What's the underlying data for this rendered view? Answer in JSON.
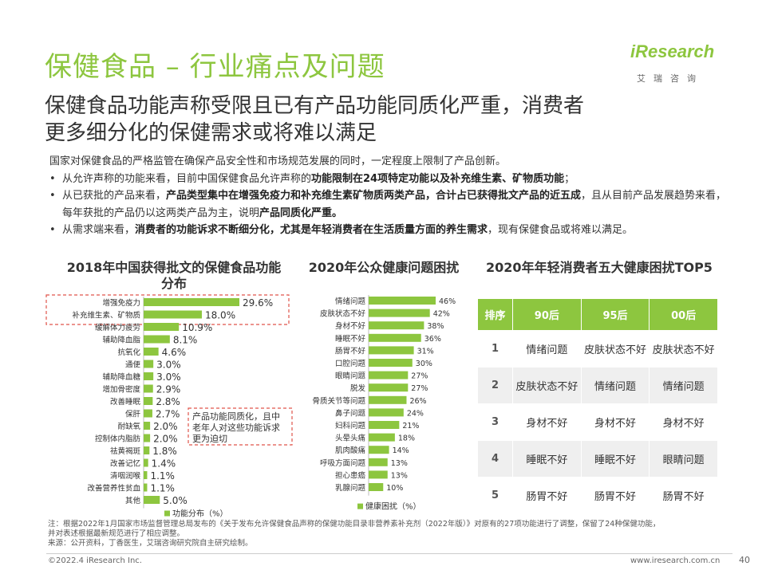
{
  "header": {
    "title": "保健食品 – 行业痛点及问题",
    "subtitle_line1": "保健食品功能声称受限且已有产品功能同质化严重，消费者",
    "subtitle_line2": "更多细分化的保健需求或将难以满足"
  },
  "logo": {
    "brand": "iResearch",
    "cn": "艾瑞咨询"
  },
  "intro": {
    "lead": "国家对保健食品的严格监管在确保产品安全性和市场规范发展的同时，一定程度上限制了产品创新。",
    "bullet1_pre": "从允许声称的功能来看，目前中国保健食品允许声称的",
    "bullet1_bold": "功能限制在24项特定功能以及补充维生素、矿物质功能",
    "bullet1_post": "；",
    "bullet2_pre": "从已获批的产品来看，",
    "bullet2_bold": "产品类型集中在增强免疫力和补充维生素矿物质两类产品，合计占已获得批文产品的近五成",
    "bullet2_mid": "，且从目前产品发展趋势来看，每年获批的产品仍以这两类产品为主，说明",
    "bullet2_bold2": "产品同质化严重。",
    "bullet3_pre": "从需求端来看，",
    "bullet3_bold": "消费者的功能诉求不断细分化，尤其是年轻消费者在生活质量方面的养生需求",
    "bullet3_post": "，现有保健食品或将难以满足。",
    "bullet_dot": "•"
  },
  "chart_data": [
    {
      "type": "bar",
      "orientation": "horizontal",
      "title": "2018年中国获得批文的保健食品功能分布",
      "categories": [
        "增强免疫力",
        "补充维生素、矿物质",
        "缓解体力疲劳",
        "辅助降血脂",
        "抗氧化",
        "通便",
        "辅助降血糖",
        "增加骨密度",
        "改善睡眠",
        "保肝",
        "耐缺氧",
        "控制体内脂肪",
        "祛黄褐斑",
        "改善记忆",
        "清咽润喉",
        "改善营养性贫血",
        "其他"
      ],
      "values": [
        29.6,
        18.0,
        10.9,
        8.1,
        4.6,
        3.0,
        3.0,
        2.9,
        2.8,
        2.7,
        2.0,
        2.0,
        1.8,
        1.4,
        1.1,
        1.1,
        5.0
      ],
      "value_labels": [
        "29.6%",
        "18.0%",
        "10.9%",
        "8.1%",
        "4.6%",
        "3.0%",
        "3.0%",
        "2.9%",
        "2.8%",
        "2.7%",
        "2.0%",
        "2.0%",
        "1.8%",
        "1.4%",
        "1.1%",
        "1.1%",
        "5.0%"
      ],
      "legend": "功能分布（%）",
      "annotation": "产品功能同质化，且中老年人对这些功能诉求更为迫切",
      "color": "#8dc63f",
      "highlight_color": "#e0554b"
    },
    {
      "type": "bar",
      "orientation": "horizontal",
      "title": "2020年公众健康问题困扰",
      "categories": [
        "情绪问题",
        "皮肤状态不好",
        "身材不好",
        "睡眠不好",
        "肠胃不好",
        "口腔问题",
        "眼睛问题",
        "脱发",
        "骨质关节等问题",
        "鼻子问题",
        "妇科问题",
        "头晕头痛",
        "肌肉酸痛",
        "呼吸方面问题",
        "担心患癌",
        "乳腺问题"
      ],
      "values": [
        46,
        42,
        38,
        36,
        31,
        30,
        27,
        27,
        26,
        24,
        21,
        18,
        14,
        13,
        13,
        10
      ],
      "value_labels": [
        "46%",
        "42%",
        "38%",
        "36%",
        "31%",
        "30%",
        "27%",
        "27%",
        "26%",
        "24%",
        "21%",
        "18%",
        "14%",
        "13%",
        "13%",
        "10%"
      ],
      "legend": "健康困扰（%）",
      "color": "#8dc63f"
    },
    {
      "type": "table",
      "title": "2020年年轻消费者五大健康困扰TOP5",
      "columns": [
        "排序",
        "90后",
        "95后",
        "00后"
      ],
      "rows": [
        [
          "1",
          "情绪问题",
          "皮肤状态不好",
          "皮肤状态不好"
        ],
        [
          "2",
          "皮肤状态不好",
          "情绪问题",
          "情绪问题"
        ],
        [
          "3",
          "身材不好",
          "身材不好",
          "身材不好"
        ],
        [
          "4",
          "睡眠不好",
          "睡眠不好",
          "眼睛问题"
        ],
        [
          "5",
          "肠胃不好",
          "肠胃不好",
          "肠胃不好"
        ]
      ],
      "header_color": "#8dc63f"
    }
  ],
  "footer": {
    "note1": "注：根据2022年1月国家市场监督管理总局发布的《关于发布允许保健食品声称的保健功能目录非营养素补充剂（2022年版）》对原有的27项功能进行了调整，保留了24种保健功能，",
    "note2": "并对表述根据最新规范进行了相应调整。",
    "source": "来源：公开资料，丁香医生，艾瑞咨询研究院自主研究绘制。",
    "copyright": "©2022.4 iResearch Inc.",
    "url": "www.iresearch.com.cn",
    "page": "40"
  }
}
